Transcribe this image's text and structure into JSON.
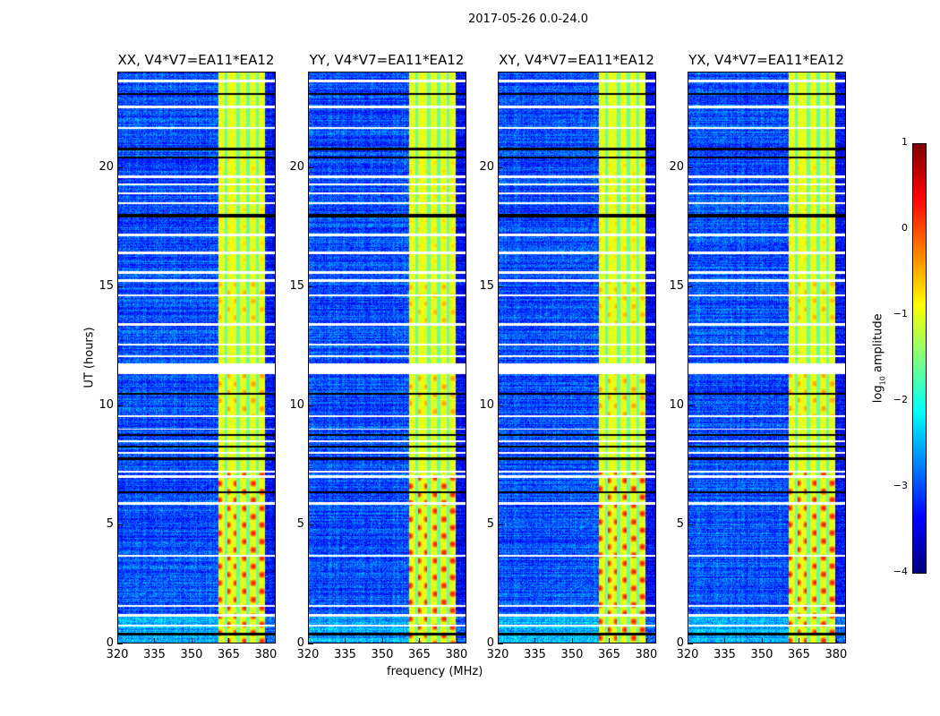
{
  "suptitle": "2017-05-26 0.0-24.0",
  "chart_data": {
    "type": "heatmap",
    "colormap": "jet",
    "xlabel": "frequency (MHz)",
    "ylabel": "UT (hours)",
    "xlim": [
      320,
      384
    ],
    "ylim": [
      0,
      24
    ],
    "xticks": [
      "320",
      "335",
      "350",
      "365",
      "380"
    ],
    "yticks": [
      "0",
      "5",
      "10",
      "15",
      "20"
    ],
    "panels": [
      {
        "title": "XX, V4*V7=EA11*EA12",
        "seed": 1
      },
      {
        "title": "YY, V4*V7=EA11*EA12",
        "seed": 2
      },
      {
        "title": "XY, V4*V7=EA11*EA12",
        "seed": 3
      },
      {
        "title": "YX, V4*V7=EA11*EA12",
        "seed": 4
      }
    ],
    "background_level": -3.0,
    "rfi_band_mhz": [
      361,
      380
    ],
    "rfi_band_level": -1.0,
    "rfi_band_stripes_mhz": [
      364,
      369,
      373,
      377
    ],
    "rfi_hot_hours": [
      [
        0,
        7.2,
        0.3
      ],
      [
        9.5,
        11.3,
        -0.4
      ],
      [
        13.4,
        15.3,
        -0.5
      ],
      [
        16,
        20.5,
        -0.7
      ]
    ],
    "flagged_rows_hours": [
      [
        23.6,
        23.7,
        "white"
      ],
      [
        23.05,
        23.15,
        "black"
      ],
      [
        22.5,
        22.6,
        "white"
      ],
      [
        21.62,
        21.7,
        "white"
      ],
      [
        20.72,
        20.82,
        "black"
      ],
      [
        20.38,
        20.46,
        "black"
      ],
      [
        19.55,
        19.65,
        "white"
      ],
      [
        19.25,
        19.33,
        "white"
      ],
      [
        18.88,
        18.96,
        "white"
      ],
      [
        18.45,
        18.53,
        "white"
      ],
      [
        17.9,
        18.05,
        "black"
      ],
      [
        17.12,
        17.2,
        "white"
      ],
      [
        16.37,
        16.45,
        "white"
      ],
      [
        15.52,
        15.64,
        "white"
      ],
      [
        15.2,
        15.28,
        "white"
      ],
      [
        14.57,
        14.65,
        "white"
      ],
      [
        13.35,
        13.46,
        "white"
      ],
      [
        12.5,
        12.58,
        "white"
      ],
      [
        12.02,
        12.1,
        "white"
      ],
      [
        11.3,
        11.75,
        "white"
      ],
      [
        10.44,
        10.52,
        "black"
      ],
      [
        9.5,
        9.58,
        "white"
      ],
      [
        8.95,
        9.02,
        "white"
      ],
      [
        8.7,
        8.78,
        "black"
      ],
      [
        8.45,
        8.52,
        "white"
      ],
      [
        8.2,
        8.3,
        "black"
      ],
      [
        7.95,
        8.02,
        "white"
      ],
      [
        7.7,
        7.8,
        "black"
      ],
      [
        7.17,
        7.25,
        "white"
      ],
      [
        6.95,
        7.03,
        "white"
      ],
      [
        6.3,
        6.38,
        "black"
      ],
      [
        5.82,
        5.9,
        "white"
      ],
      [
        3.6,
        3.68,
        "white"
      ],
      [
        1.5,
        1.58,
        "white"
      ],
      [
        1.1,
        1.2,
        "white"
      ],
      [
        0.67,
        0.75,
        "white"
      ],
      [
        0.3,
        0.4,
        "black"
      ]
    ],
    "colorbar": {
      "label": "log10 amplitude",
      "label_main": "log",
      "label_sub": "10",
      "label_rest": " amplitude",
      "range": [
        -4,
        1
      ],
      "ticks": [
        "1",
        "0",
        "−1",
        "−2",
        "−3",
        "−4"
      ]
    }
  }
}
